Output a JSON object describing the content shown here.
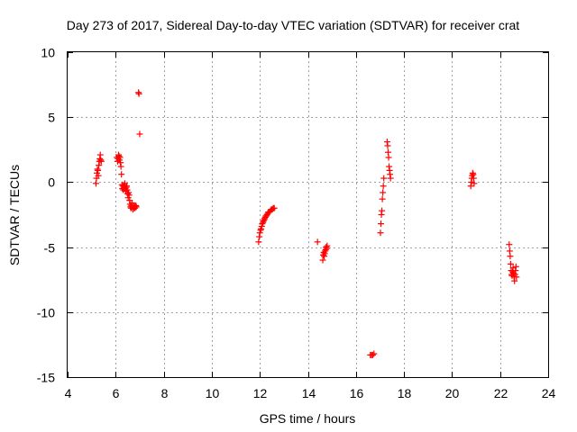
{
  "chart_data": {
    "type": "scatter",
    "title": "Day 273 of 2017, Sidereal Day-to-day VTEC variation (SDTVAR) for receiver crat",
    "xlabel": "GPS time / hours",
    "ylabel": "SDTVAR / TECUs",
    "xlim": [
      4,
      24
    ],
    "ylim": [
      -15,
      10
    ],
    "xticks": [
      4,
      6,
      8,
      10,
      12,
      14,
      16,
      18,
      20,
      22,
      24
    ],
    "yticks": [
      -15,
      -10,
      -5,
      0,
      5,
      10
    ],
    "xtick_labels": [
      "4",
      "6",
      "8",
      "10",
      "12",
      "14",
      "16",
      "18",
      "20",
      "22",
      "24"
    ],
    "ytick_labels": [
      "-15",
      "-10",
      "-5",
      "0",
      "5",
      "10"
    ],
    "grid": true,
    "marker": "+",
    "color": "#ff0000",
    "series": [
      {
        "name": "SDTVAR",
        "x": [
          5.18,
          5.2,
          5.22,
          5.24,
          5.26,
          5.28,
          5.3,
          5.32,
          5.34,
          5.36,
          5.38,
          5.4,
          6.05,
          6.08,
          6.1,
          6.12,
          6.14,
          6.16,
          6.18,
          6.2,
          6.22,
          6.24,
          6.26,
          6.28,
          6.3,
          6.32,
          6.34,
          6.36,
          6.38,
          6.4,
          6.42,
          6.44,
          6.46,
          6.48,
          6.5,
          6.52,
          6.54,
          6.56,
          6.58,
          6.6,
          6.62,
          6.64,
          6.66,
          6.68,
          6.7,
          6.72,
          6.74,
          6.76,
          6.78,
          6.8,
          6.82,
          6.84,
          6.86,
          6.95,
          6.97,
          7.0,
          11.95,
          11.98,
          12.0,
          12.03,
          12.05,
          12.08,
          12.1,
          12.13,
          12.15,
          12.18,
          12.2,
          12.23,
          12.25,
          12.28,
          12.3,
          12.33,
          12.36,
          12.4,
          12.44,
          12.48,
          12.52,
          12.56,
          12.6,
          14.4,
          14.62,
          14.64,
          14.66,
          14.68,
          14.7,
          14.72,
          14.74,
          14.76,
          14.78,
          14.8,
          16.6,
          16.65,
          16.7,
          16.75,
          17.02,
          17.04,
          17.06,
          17.08,
          17.1,
          17.12,
          17.14,
          17.16,
          17.3,
          17.32,
          17.34,
          17.36,
          17.38,
          17.4,
          17.42,
          17.44,
          20.78,
          20.8,
          20.82,
          20.84,
          20.86,
          20.88,
          20.9,
          20.92,
          22.38,
          22.4,
          22.42,
          22.44,
          22.46,
          22.48,
          22.5,
          22.52,
          22.54,
          22.56,
          22.58,
          22.6,
          22.62,
          22.64,
          22.66,
          22.68
        ],
        "y": [
          -0.1,
          0.3,
          0.7,
          1.0,
          0.9,
          0.5,
          1.3,
          1.6,
          1.8,
          2.1,
          1.7,
          1.6,
          1.9,
          1.6,
          1.8,
          2.1,
          2.0,
          1.7,
          1.9,
          1.5,
          1.2,
          0.6,
          -0.2,
          -0.5,
          -0.3,
          -0.6,
          -0.4,
          -0.2,
          -0.1,
          -0.5,
          -0.7,
          -0.4,
          -0.3,
          -0.6,
          -0.9,
          -1.2,
          -0.8,
          -1.0,
          -1.4,
          -1.7,
          -1.9,
          -2.0,
          -1.8,
          -1.6,
          -1.9,
          -2.1,
          -2.0,
          -1.8,
          -1.9,
          -2.0,
          -1.9,
          -1.8,
          -1.9,
          6.9,
          6.8,
          3.7,
          -4.6,
          -4.2,
          -3.9,
          -3.7,
          -3.6,
          -3.4,
          -3.2,
          -3.1,
          -3.0,
          -2.9,
          -2.8,
          -2.7,
          -2.6,
          -2.6,
          -2.5,
          -2.4,
          -2.3,
          -2.3,
          -2.2,
          -2.1,
          -2.1,
          -2.0,
          -2.0,
          -4.6,
          -6.0,
          -5.6,
          -5.4,
          -5.7,
          -5.5,
          -5.3,
          -5.2,
          -5.0,
          -5.1,
          -4.9,
          -13.3,
          -13.3,
          -13.3,
          -13.2,
          -3.9,
          -3.2,
          -2.5,
          -2.2,
          -1.3,
          -0.8,
          -0.3,
          0.3,
          3.1,
          2.8,
          2.3,
          1.9,
          1.2,
          0.9,
          0.6,
          0.3,
          -0.3,
          0.0,
          0.3,
          0.5,
          0.7,
          0.6,
          0.3,
          -0.1,
          -4.8,
          -5.3,
          -5.7,
          -6.3,
          -6.8,
          -7.1,
          -7.2,
          -6.9,
          -6.6,
          -7.0,
          -7.3,
          -7.6,
          -7.1,
          -6.8,
          -6.5,
          -7.3
        ]
      }
    ]
  }
}
